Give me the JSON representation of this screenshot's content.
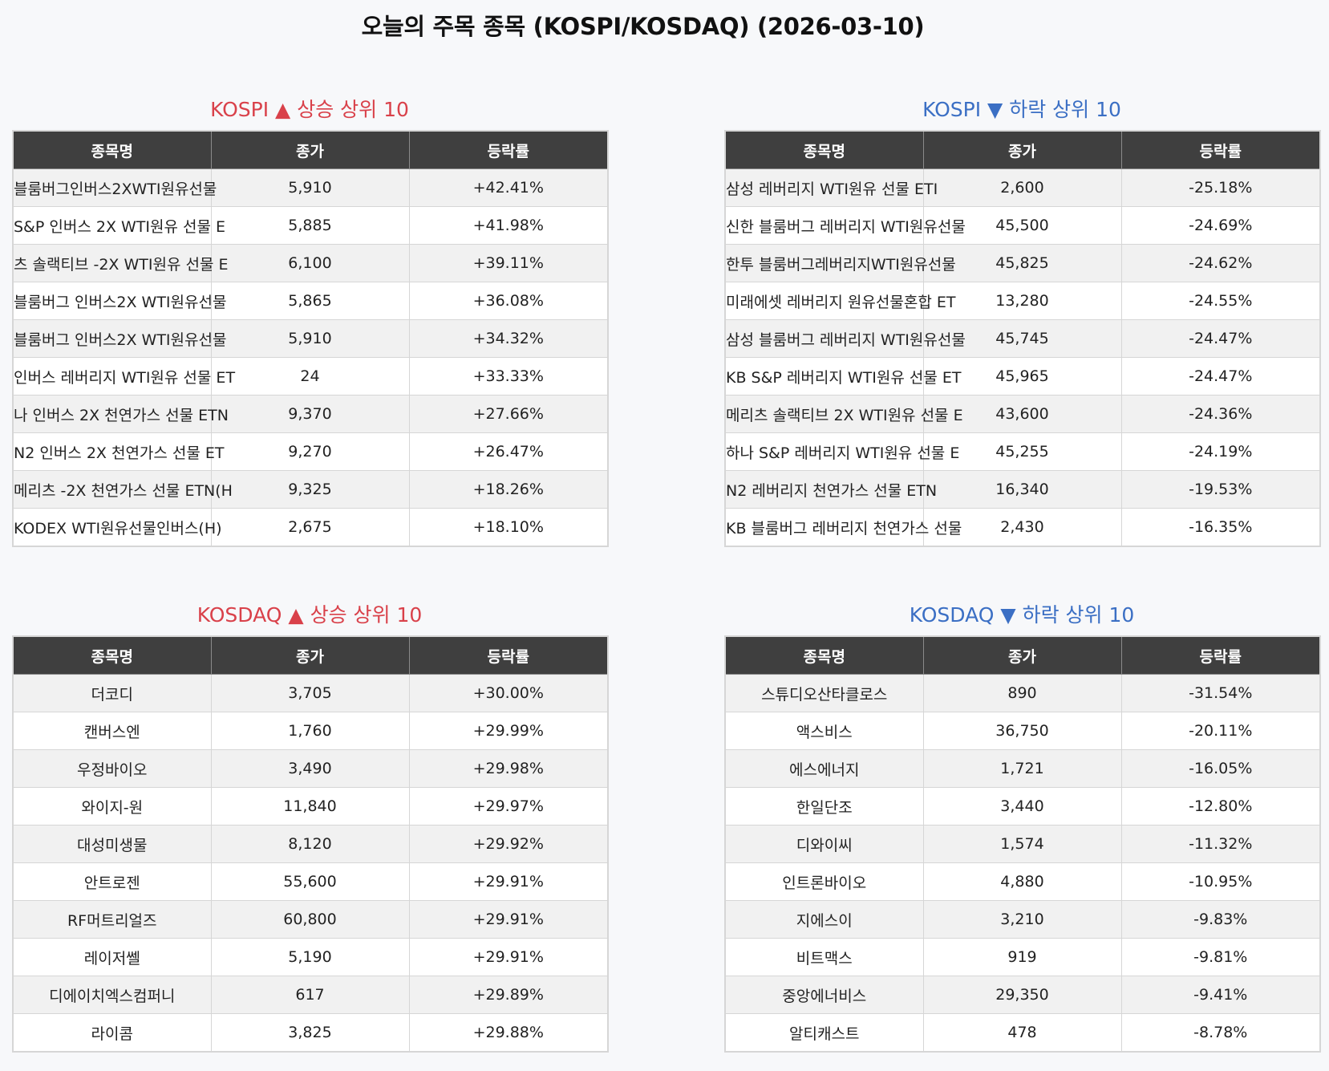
{
  "title": "오늘의 주목 종목 (KOSPI/KOSDAQ) (2026-03-10)",
  "colors": {
    "up": "#d9414a",
    "down": "#3b6fc4",
    "header_bg": "#3f3f3f"
  },
  "panels": [
    {
      "id": "kospi-up",
      "title": "KOSPI ▲ 상승 상위 10",
      "direction": "up",
      "headers": [
        "종목명",
        "종가",
        "등락률"
      ],
      "rows": [
        {
          "name": "블룸버그인버스2XWTI원유선물",
          "price": "5,910",
          "change": "+42.41%"
        },
        {
          "name": "S&P 인버스 2X WTI원유 선물 E",
          "price": "5,885",
          "change": "+41.98%"
        },
        {
          "name": "츠 솔랙티브 -2X WTI원유 선물 E",
          "price": "6,100",
          "change": "+39.11%"
        },
        {
          "name": "블룸버그 인버스2X WTI원유선물",
          "price": "5,865",
          "change": "+36.08%"
        },
        {
          "name": "블룸버그 인버스2X WTI원유선물",
          "price": "5,910",
          "change": "+34.32%"
        },
        {
          "name": "인버스 레버리지 WTI원유 선물 ET",
          "price": "24",
          "change": "+33.33%"
        },
        {
          "name": "나 인버스 2X 천연가스 선물 ETN",
          "price": "9,370",
          "change": "+27.66%"
        },
        {
          "name": "N2 인버스 2X 천연가스 선물 ET",
          "price": "9,270",
          "change": "+26.47%"
        },
        {
          "name": "메리츠 -2X 천연가스 선물 ETN(H",
          "price": "9,325",
          "change": "+18.26%"
        },
        {
          "name": "KODEX WTI원유선물인버스(H)",
          "price": "2,675",
          "change": "+18.10%"
        }
      ]
    },
    {
      "id": "kospi-down",
      "title": "KOSPI ▼ 하락 상위 10",
      "direction": "down",
      "headers": [
        "종목명",
        "종가",
        "등락률"
      ],
      "rows": [
        {
          "name": "삼성 레버리지 WTI원유 선물 ETI",
          "price": "2,600",
          "change": "-25.18%"
        },
        {
          "name": "신한 블룸버그 레버리지 WTI원유선물",
          "price": "45,500",
          "change": "-24.69%"
        },
        {
          "name": "한투 블룸버그레버리지WTI원유선물",
          "price": "45,825",
          "change": "-24.62%"
        },
        {
          "name": "미래에셋 레버리지 원유선물혼합 ET",
          "price": "13,280",
          "change": "-24.55%"
        },
        {
          "name": "삼성 블룸버그 레버리지 WTI원유선물",
          "price": "45,745",
          "change": "-24.47%"
        },
        {
          "name": "KB S&P 레버리지 WTI원유 선물 ET",
          "price": "45,965",
          "change": "-24.47%"
        },
        {
          "name": "메리츠 솔랙티브 2X WTI원유 선물 E",
          "price": "43,600",
          "change": "-24.36%"
        },
        {
          "name": "하나 S&P 레버리지 WTI원유 선물 E",
          "price": "45,255",
          "change": "-24.19%"
        },
        {
          "name": "N2 레버리지 천연가스 선물 ETN",
          "price": "16,340",
          "change": "-19.53%"
        },
        {
          "name": "KB 블룸버그 레버리지 천연가스 선물",
          "price": "2,430",
          "change": "-16.35%"
        }
      ]
    },
    {
      "id": "kosdaq-up",
      "title": "KOSDAQ ▲ 상승 상위 10",
      "direction": "up",
      "headers": [
        "종목명",
        "종가",
        "등락률"
      ],
      "rows": [
        {
          "name": "더코디",
          "price": "3,705",
          "change": "+30.00%"
        },
        {
          "name": "캔버스엔",
          "price": "1,760",
          "change": "+29.99%"
        },
        {
          "name": "우정바이오",
          "price": "3,490",
          "change": "+29.98%"
        },
        {
          "name": "와이지-원",
          "price": "11,840",
          "change": "+29.97%"
        },
        {
          "name": "대성미생물",
          "price": "8,120",
          "change": "+29.92%"
        },
        {
          "name": "안트로젠",
          "price": "55,600",
          "change": "+29.91%"
        },
        {
          "name": "RF머트리얼즈",
          "price": "60,800",
          "change": "+29.91%"
        },
        {
          "name": "레이저쎌",
          "price": "5,190",
          "change": "+29.91%"
        },
        {
          "name": "디에이치엑스컴퍼니",
          "price": "617",
          "change": "+29.89%"
        },
        {
          "name": "라이콤",
          "price": "3,825",
          "change": "+29.88%"
        }
      ]
    },
    {
      "id": "kosdaq-down",
      "title": "KOSDAQ ▼ 하락 상위 10",
      "direction": "down",
      "headers": [
        "종목명",
        "종가",
        "등락률"
      ],
      "rows": [
        {
          "name": "스튜디오산타클로스",
          "price": "890",
          "change": "-31.54%"
        },
        {
          "name": "액스비스",
          "price": "36,750",
          "change": "-20.11%"
        },
        {
          "name": "에스에너지",
          "price": "1,721",
          "change": "-16.05%"
        },
        {
          "name": "한일단조",
          "price": "3,440",
          "change": "-12.80%"
        },
        {
          "name": "디와이씨",
          "price": "1,574",
          "change": "-11.32%"
        },
        {
          "name": "인트론바이오",
          "price": "4,880",
          "change": "-10.95%"
        },
        {
          "name": "지에스이",
          "price": "3,210",
          "change": "-9.83%"
        },
        {
          "name": "비트맥스",
          "price": "919",
          "change": "-9.81%"
        },
        {
          "name": "중앙에너비스",
          "price": "29,350",
          "change": "-9.41%"
        },
        {
          "name": "알티캐스트",
          "price": "478",
          "change": "-8.78%"
        }
      ]
    }
  ]
}
